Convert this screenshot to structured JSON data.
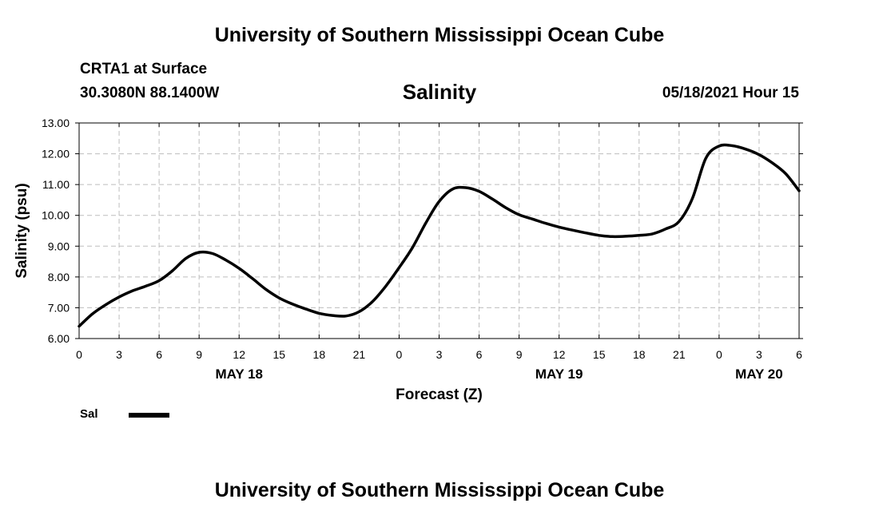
{
  "header": {
    "title": "University of Southern Mississippi Ocean Cube",
    "station": "CRTA1 at Surface",
    "coordinates": "30.3080N  88.1400W",
    "run_time": "05/18/2021 Hour 15"
  },
  "footer": {
    "title": "University of Southern Mississippi Ocean Cube"
  },
  "chart_data": {
    "type": "line",
    "title": "Salinity",
    "xlabel": "Forecast (Z)",
    "ylabel": "Salinity (psu)",
    "xlim": [
      0,
      54
    ],
    "ylim": [
      6.0,
      13.0
    ],
    "grid": true,
    "y_ticks": [
      "6.00",
      "7.00",
      "8.00",
      "9.00",
      "10.00",
      "11.00",
      "12.00",
      "13.00"
    ],
    "x_ticks": [
      {
        "x": 0,
        "label": "0"
      },
      {
        "x": 3,
        "label": "3"
      },
      {
        "x": 6,
        "label": "6"
      },
      {
        "x": 9,
        "label": "9"
      },
      {
        "x": 12,
        "label": "12"
      },
      {
        "x": 15,
        "label": "15"
      },
      {
        "x": 18,
        "label": "18"
      },
      {
        "x": 21,
        "label": "21"
      },
      {
        "x": 24,
        "label": "0"
      },
      {
        "x": 27,
        "label": "3"
      },
      {
        "x": 30,
        "label": "6"
      },
      {
        "x": 33,
        "label": "9"
      },
      {
        "x": 36,
        "label": "12"
      },
      {
        "x": 39,
        "label": "15"
      },
      {
        "x": 42,
        "label": "18"
      },
      {
        "x": 45,
        "label": "21"
      },
      {
        "x": 48,
        "label": "0"
      },
      {
        "x": 51,
        "label": "3"
      },
      {
        "x": 54,
        "label": "6"
      }
    ],
    "date_labels": [
      {
        "x": 12,
        "label": "MAY 18"
      },
      {
        "x": 36,
        "label": "MAY 19"
      },
      {
        "x": 51,
        "label": "MAY 20"
      }
    ],
    "legend": {
      "placement": "bottom-left",
      "entries": [
        "Sal"
      ]
    },
    "series": [
      {
        "name": "Sal",
        "color": "#000000",
        "x": [
          0,
          1,
          2,
          3,
          4,
          5,
          6,
          7,
          8,
          9,
          10,
          11,
          12,
          13,
          14,
          15,
          16,
          17,
          18,
          19,
          20,
          21,
          22,
          23,
          24,
          25,
          26,
          27,
          28,
          29,
          30,
          31,
          32,
          33,
          34,
          35,
          36,
          37,
          38,
          39,
          40,
          41,
          42,
          43,
          44,
          45,
          46,
          47,
          48,
          49,
          50,
          51,
          52,
          53,
          54
        ],
        "values": [
          6.4,
          6.8,
          7.1,
          7.35,
          7.55,
          7.7,
          7.88,
          8.2,
          8.6,
          8.8,
          8.76,
          8.55,
          8.28,
          7.95,
          7.6,
          7.32,
          7.12,
          6.96,
          6.82,
          6.75,
          6.73,
          6.87,
          7.2,
          7.7,
          8.3,
          8.95,
          9.75,
          10.45,
          10.85,
          10.9,
          10.78,
          10.53,
          10.25,
          10.02,
          9.88,
          9.74,
          9.62,
          9.52,
          9.43,
          9.35,
          9.31,
          9.32,
          9.35,
          9.4,
          9.56,
          9.8,
          10.55,
          11.85,
          12.25,
          12.26,
          12.15,
          11.97,
          11.7,
          11.35,
          10.8
        ]
      }
    ]
  }
}
